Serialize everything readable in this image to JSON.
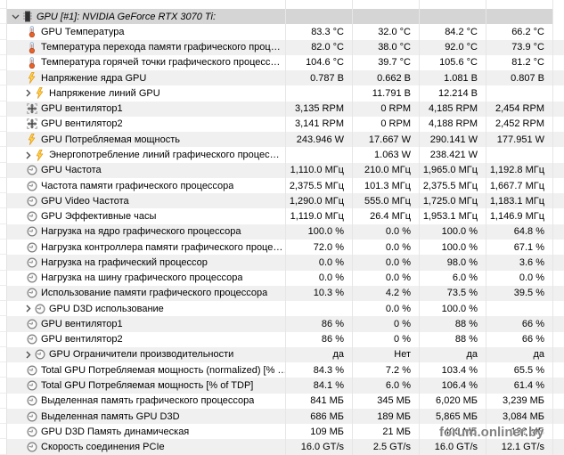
{
  "header": {
    "title": "GPU [#1]: NVIDIA GeForce RTX 3070 Ti:",
    "icon": "gpu-chip-icon",
    "expanded": true
  },
  "watermark": {
    "text": "forum.onliner.by"
  },
  "colors": {
    "header_bg": "#d5d5d5",
    "stripe_bg": "#f0f0f0",
    "grid_line": "#e6e6e6",
    "thermometer": "#e8622a",
    "lightning": "#ffd34d"
  },
  "rows": [
    {
      "label": "GPU Температура",
      "icon": "thermometer",
      "group": false,
      "values": [
        "83.3 °C",
        "32.0 °C",
        "84.2 °C",
        "66.2 °C"
      ]
    },
    {
      "label": "Температура перехода памяти графического проц…",
      "icon": "thermometer",
      "group": false,
      "values": [
        "82.0 °C",
        "38.0 °C",
        "92.0 °C",
        "73.9 °C"
      ]
    },
    {
      "label": "Температура горячей точки графического процесс…",
      "icon": "thermometer",
      "group": false,
      "values": [
        "104.6 °C",
        "39.7 °C",
        "105.6 °C",
        "81.2 °C"
      ]
    },
    {
      "label": "Напряжение ядра GPU",
      "icon": "lightning",
      "group": false,
      "values": [
        "0.787 В",
        "0.662 В",
        "1.081 В",
        "0.807 В"
      ]
    },
    {
      "label": "Напряжение линий GPU",
      "icon": "lightning",
      "group": true,
      "values": [
        "",
        "11.791 В",
        "12.214 В",
        ""
      ]
    },
    {
      "label": "GPU вентилятор1",
      "icon": "fan",
      "group": false,
      "values": [
        "3,135 RPM",
        "0 RPM",
        "4,185 RPM",
        "2,454 RPM"
      ]
    },
    {
      "label": "GPU вентилятор2",
      "icon": "fan",
      "group": false,
      "values": [
        "3,141 RPM",
        "0 RPM",
        "4,188 RPM",
        "2,452 RPM"
      ]
    },
    {
      "label": "GPU Потребляемая мощность",
      "icon": "lightning",
      "group": false,
      "values": [
        "243.946 W",
        "17.667 W",
        "290.141 W",
        "177.951 W"
      ]
    },
    {
      "label": "Энергопотребление линий графического процес…",
      "icon": "lightning",
      "group": true,
      "values": [
        "",
        "1.063 W",
        "238.421 W",
        ""
      ]
    },
    {
      "label": "GPU Частота",
      "icon": "gauge",
      "group": false,
      "values": [
        "1,110.0 МГц",
        "210.0 МГц",
        "1,965.0 МГц",
        "1,192.8 МГц"
      ]
    },
    {
      "label": "Частота памяти графического процессора",
      "icon": "gauge",
      "group": false,
      "values": [
        "2,375.5 МГц",
        "101.3 МГц",
        "2,375.5 МГц",
        "1,667.7 МГц"
      ]
    },
    {
      "label": "GPU Video Частота",
      "icon": "gauge",
      "group": false,
      "values": [
        "1,290.0 МГц",
        "555.0 МГц",
        "1,725.0 МГц",
        "1,183.1 МГц"
      ]
    },
    {
      "label": "GPU Эффективные часы",
      "icon": "gauge",
      "group": false,
      "values": [
        "1,119.0 МГц",
        "26.4 МГц",
        "1,953.1 МГц",
        "1,146.9 МГц"
      ]
    },
    {
      "label": "Нагрузка на ядро графического процессора",
      "icon": "gauge",
      "group": false,
      "values": [
        "100.0 %",
        "0.0 %",
        "100.0 %",
        "64.8 %"
      ]
    },
    {
      "label": "Нагрузка контроллера памяти графического проце…",
      "icon": "gauge",
      "group": false,
      "values": [
        "72.0 %",
        "0.0 %",
        "100.0 %",
        "67.1 %"
      ]
    },
    {
      "label": "Нагрузка на графический процессор",
      "icon": "gauge",
      "group": false,
      "values": [
        "0.0 %",
        "0.0 %",
        "98.0 %",
        "3.6 %"
      ]
    },
    {
      "label": "Нагрузка на шину графического процессора",
      "icon": "gauge",
      "group": false,
      "values": [
        "0.0 %",
        "0.0 %",
        "6.0 %",
        "0.0 %"
      ]
    },
    {
      "label": "Использование памяти графического процессора",
      "icon": "gauge",
      "group": false,
      "values": [
        "10.3 %",
        "4.2 %",
        "73.5 %",
        "39.5 %"
      ]
    },
    {
      "label": "GPU D3D использование",
      "icon": "gauge",
      "group": true,
      "values": [
        "",
        "0.0 %",
        "100.0 %",
        ""
      ]
    },
    {
      "label": "GPU вентилятор1",
      "icon": "gauge",
      "group": false,
      "values": [
        "86 %",
        "0 %",
        "88 %",
        "66 %"
      ]
    },
    {
      "label": "GPU вентилятор2",
      "icon": "gauge",
      "group": false,
      "values": [
        "86 %",
        "0 %",
        "88 %",
        "66 %"
      ]
    },
    {
      "label": "GPU Ограничители производительности",
      "icon": "gauge",
      "group": true,
      "values": [
        "да",
        "Нет",
        "да",
        "да"
      ]
    },
    {
      "label": "Total GPU Потребляемая мощность (normalized) [% …",
      "icon": "gauge",
      "group": false,
      "values": [
        "84.3 %",
        "7.2 %",
        "103.4 %",
        "65.5 %"
      ]
    },
    {
      "label": "Total GPU Потребляемая мощность [% of TDP]",
      "icon": "gauge",
      "group": false,
      "values": [
        "84.1 %",
        "6.0 %",
        "106.4 %",
        "61.4 %"
      ]
    },
    {
      "label": "Выделенная память графического процессора",
      "icon": "gauge",
      "group": false,
      "values": [
        "841 МБ",
        "345 МБ",
        "6,020 МБ",
        "3,239 МБ"
      ]
    },
    {
      "label": "Выделенная память GPU D3D",
      "icon": "gauge",
      "group": false,
      "values": [
        "686 МБ",
        "189 МБ",
        "5,865 МБ",
        "3,084 МБ"
      ]
    },
    {
      "label": "GPU D3D Память динамическая",
      "icon": "gauge",
      "group": false,
      "values": [
        "109 МБ",
        "21 МБ",
        "406 МБ",
        "132 МБ"
      ]
    },
    {
      "label": "Скорость соединения PCIe",
      "icon": "gauge",
      "group": false,
      "values": [
        "16.0 GT/s",
        "2.5 GT/s",
        "16.0 GT/s",
        "12.1 GT/s"
      ]
    }
  ]
}
